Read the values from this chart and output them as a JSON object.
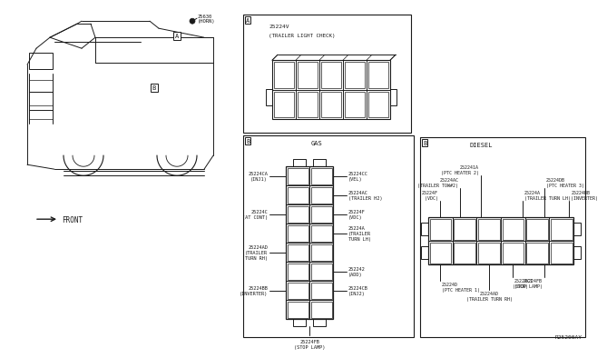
{
  "bg_color": "#ffffff",
  "line_color": "#1a1a1a",
  "ref_code": "R25200AY",
  "horn_label": "25630\n(HORN)",
  "front_label": "FRONT",
  "trailer_light_label1": "25224V",
  "trailer_light_label2": "(TRAILER LIGHT CHECK)",
  "gas_label": "GAS",
  "diesel_label": "DIESEL",
  "gas_left_labels": [
    [
      0.875,
      "25224CA\n(INJ1)"
    ],
    [
      0.625,
      "25224C\n(AT CONT)"
    ],
    [
      0.375,
      "25224AD\n(TRAILER\nTURN RH)"
    ],
    [
      0.125,
      "25224BB\n(INVERTER)"
    ]
  ],
  "gas_right_labels": [
    [
      0.9375,
      "25224CC\n(VEL)"
    ],
    [
      0.8125,
      "25224AC\n(TRAILER H2)"
    ],
    [
      0.625,
      "25224F\n(VDC)"
    ],
    [
      0.4375,
      "25224A\n(TRAILER\nTURN LH)"
    ],
    [
      0.25,
      "252242\n(ADD)"
    ],
    [
      0.125,
      "25224CB\n(INJ2)"
    ]
  ],
  "gas_bottom_label": "25224FB\n(STOP LAMP)",
  "diesel_top_labels": [
    [
      0.12,
      "left",
      "25224F\n(VDC)"
    ],
    [
      0.25,
      "left",
      "25224AC\n(TRAILER TOW#2)"
    ],
    [
      0.38,
      "left",
      "252241A\n(PTC HEATER 2)"
    ],
    [
      0.65,
      "right",
      "25224A\n(TRAILER TURN LH)"
    ],
    [
      0.8,
      "right",
      "25224DB\n(PTC HEATER 3)"
    ],
    [
      0.97,
      "right",
      "25224BB\n(INVERTER)"
    ]
  ],
  "diesel_bottom_labels": [
    [
      0.12,
      "left",
      "25224D\n(PTC HEATER 1)"
    ],
    [
      0.6,
      "left",
      "25224CI\n(SCR)"
    ],
    [
      0.82,
      "right",
      "25224FB\n(STOP LAMP)"
    ],
    [
      0.5,
      "center",
      "25224AD\n(TRAILER TURN RH)"
    ]
  ]
}
